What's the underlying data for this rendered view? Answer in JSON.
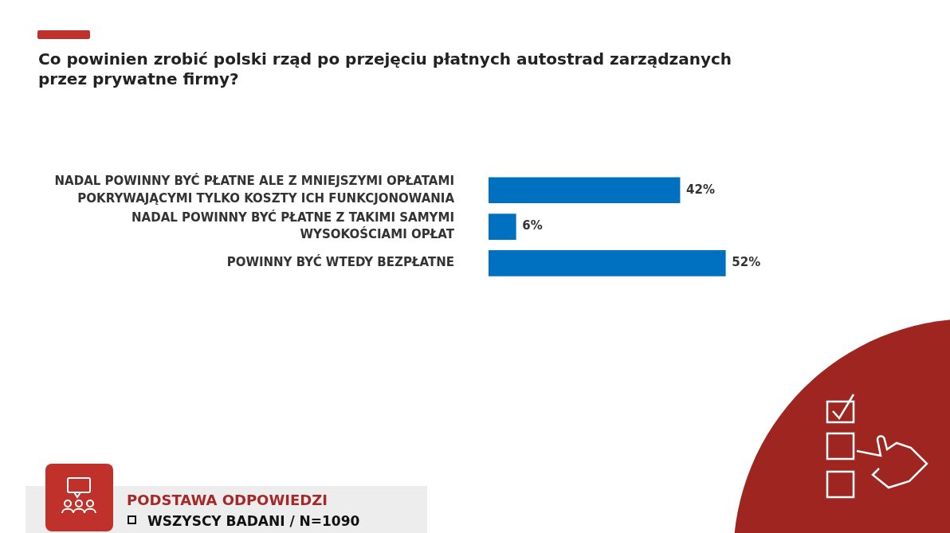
{
  "chart_data": {
    "type": "bar",
    "orientation": "horizontal",
    "title": "Co powinien zrobić polski rząd po przejęciu płatnych autostrad zarządzanych przez prywatne firmy?",
    "categories": [
      "NADAL POWINNY BYĆ PŁATNE ALE Z MNIEJSZYMI OPŁATAMI POKRYWAJĄCYMI TYLKO KOSZTY ICH FUNKCJONOWANIA",
      "NADAL POWINNY BYĆ PŁATNE Z TAKIMI SAMYMI WYSOKOŚCIAMI OPŁAT",
      "POWINNY BYĆ WTEDY BEZPŁATNE"
    ],
    "values": [
      42,
      6,
      52
    ],
    "value_labels": [
      "42%",
      "6%",
      "52%"
    ],
    "color": "#0070c0",
    "legend": false,
    "grid": false,
    "annotations": [
      "PODSTAWA ODPOWIEDZI",
      "WSZYSCY BADANI / N=1090"
    ]
  }
}
